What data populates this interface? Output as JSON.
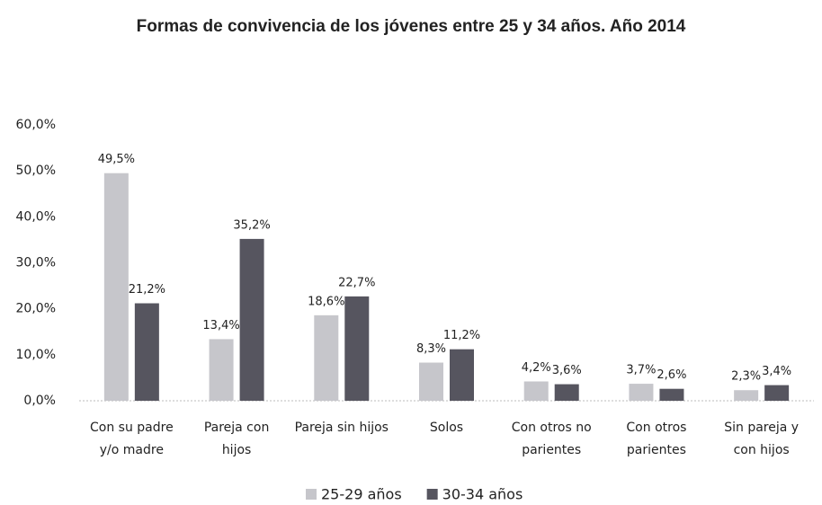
{
  "chart_data": {
    "type": "bar",
    "title": "Formas de convivencia de los jóvenes entre 25 y 34 años. Año 2014",
    "categories": [
      [
        "Con su padre",
        "y/o madre"
      ],
      [
        "Pareja con",
        "hijos"
      ],
      [
        "Pareja sin hijos"
      ],
      [
        "Solos"
      ],
      [
        "Con otros no",
        "parientes"
      ],
      [
        "Con otros",
        "parientes"
      ],
      [
        "Sin pareja y",
        "con hijos"
      ]
    ],
    "series": [
      {
        "name": "25-29 años",
        "color": "#c6c6cb",
        "values": [
          49.5,
          13.4,
          18.6,
          8.3,
          4.2,
          3.7,
          2.3
        ],
        "value_labels": [
          "49,5%",
          "13,4%",
          "18,6%",
          "8,3%",
          "4,2%",
          "3,7%",
          "2,3%"
        ]
      },
      {
        "name": "30-34 años",
        "color": "#56555f",
        "values": [
          21.2,
          35.2,
          22.7,
          11.2,
          3.6,
          2.6,
          3.4
        ],
        "value_labels": [
          "21,2%",
          "35,2%",
          "22,7%",
          "11,2%",
          "3,6%",
          "2,6%",
          "3,4%"
        ]
      }
    ],
    "ylim": [
      0,
      60
    ],
    "yticks": [
      {
        "value": 0,
        "label": "0,0%"
      },
      {
        "value": 10,
        "label": "10,0%"
      },
      {
        "value": 20,
        "label": "20,0%"
      },
      {
        "value": 30,
        "label": "30,0%"
      },
      {
        "value": 40,
        "label": "40,0%"
      },
      {
        "value": 50,
        "label": "50,0%"
      },
      {
        "value": 60,
        "label": "60,0%"
      }
    ],
    "grid": false,
    "legend": "bottom"
  }
}
